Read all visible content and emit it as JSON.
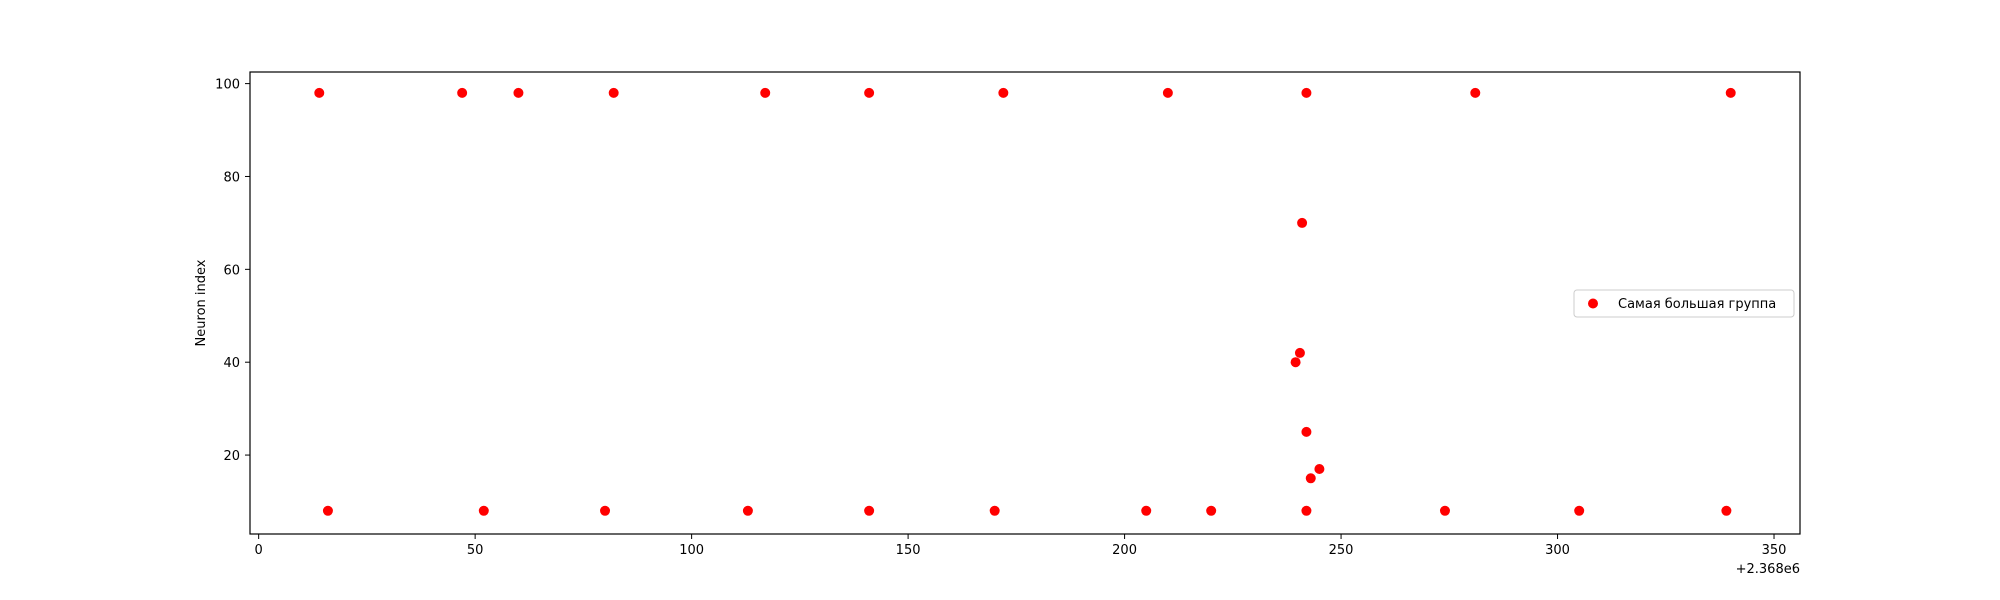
{
  "chart_data": {
    "type": "scatter",
    "title": "",
    "xlabel": "",
    "ylabel": "Neuron index",
    "offset_label": "+2.368e6",
    "xlim": [
      -2,
      356
    ],
    "ylim": [
      3,
      102.5
    ],
    "xticks": [
      0,
      50,
      100,
      150,
      200,
      250,
      300,
      350
    ],
    "yticks": [
      20,
      40,
      60,
      80,
      100
    ],
    "grid": false,
    "legend_position": "center-right",
    "marker_color": "#ff0000",
    "series": [
      {
        "name": "Самая большая группа",
        "points": [
          [
            14,
            98
          ],
          [
            47,
            98
          ],
          [
            60,
            98
          ],
          [
            82,
            98
          ],
          [
            117,
            98
          ],
          [
            141,
            98
          ],
          [
            172,
            98
          ],
          [
            210,
            98
          ],
          [
            242,
            98
          ],
          [
            281,
            98
          ],
          [
            340,
            98
          ],
          [
            16,
            8
          ],
          [
            52,
            8
          ],
          [
            80,
            8
          ],
          [
            113,
            8
          ],
          [
            141,
            8
          ],
          [
            170,
            8
          ],
          [
            205,
            8
          ],
          [
            220,
            8
          ],
          [
            242,
            8
          ],
          [
            274,
            8
          ],
          [
            305,
            8
          ],
          [
            339,
            8
          ],
          [
            241,
            70
          ],
          [
            240.5,
            42
          ],
          [
            239.5,
            40
          ],
          [
            242,
            25
          ],
          [
            245,
            17
          ],
          [
            243,
            15
          ]
        ]
      }
    ]
  }
}
